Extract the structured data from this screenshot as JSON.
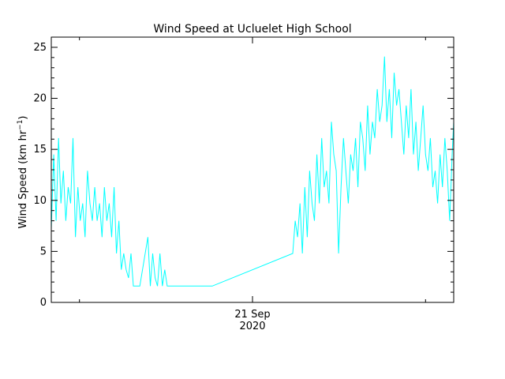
{
  "chart_data": {
    "type": "line",
    "title": "Wind Speed at Ucluelet High School",
    "ylabel": {
      "main": "Wind Speed (km hr",
      "sup": "−1",
      "close": ")"
    },
    "xlabel": "",
    "x_tick_labels": [
      {
        "label": "21 Sep",
        "year": "2020",
        "x": 0.5
      }
    ],
    "x_axis": "time (fraction of plotted interval)",
    "xlim": [
      0,
      1
    ],
    "ylim": [
      0,
      26
    ],
    "y_ticks": [
      0,
      5,
      10,
      15,
      20,
      25
    ],
    "y_tick_labels": [
      "0",
      "5",
      "10",
      "15",
      "20",
      "25"
    ],
    "grid": false,
    "line_color": "#00ffff",
    "series": [
      {
        "name": "",
        "x": [
          0.0,
          0.006,
          0.012,
          0.018,
          0.024,
          0.03,
          0.036,
          0.042,
          0.048,
          0.054,
          0.06,
          0.066,
          0.072,
          0.078,
          0.084,
          0.09,
          0.096,
          0.102,
          0.108,
          0.114,
          0.12,
          0.126,
          0.132,
          0.138,
          0.144,
          0.15,
          0.156,
          0.162,
          0.168,
          0.174,
          0.18,
          0.186,
          0.192,
          0.198,
          0.204,
          0.212,
          0.22,
          0.24,
          0.246,
          0.252,
          0.258,
          0.264,
          0.27,
          0.276,
          0.282,
          0.288,
          0.3,
          0.4,
          0.6,
          0.606,
          0.612,
          0.618,
          0.624,
          0.63,
          0.636,
          0.642,
          0.648,
          0.654,
          0.66,
          0.666,
          0.672,
          0.678,
          0.684,
          0.69,
          0.696,
          0.702,
          0.708,
          0.714,
          0.72,
          0.726,
          0.732,
          0.738,
          0.744,
          0.75,
          0.756,
          0.762,
          0.768,
          0.774,
          0.78,
          0.786,
          0.792,
          0.798,
          0.804,
          0.81,
          0.816,
          0.822,
          0.828,
          0.834,
          0.84,
          0.846,
          0.852,
          0.858,
          0.864,
          0.87,
          0.876,
          0.882,
          0.888,
          0.894,
          0.9,
          0.906,
          0.912,
          0.918,
          0.924,
          0.93,
          0.936,
          0.942,
          0.948,
          0.954,
          0.96,
          0.966,
          0.972,
          0.978,
          0.984,
          0.99,
          0.996,
          1.0
        ],
        "y": [
          7.2,
          14.5,
          8.0,
          16.1,
          9.7,
          12.9,
          8.0,
          11.3,
          9.7,
          16.1,
          6.4,
          11.3,
          8.0,
          9.7,
          6.4,
          12.9,
          9.7,
          8.0,
          11.3,
          8.0,
          9.7,
          6.4,
          11.3,
          8.0,
          9.7,
          6.4,
          11.3,
          4.8,
          8.0,
          3.2,
          4.8,
          3.2,
          2.4,
          4.8,
          1.6,
          1.6,
          1.6,
          6.4,
          1.6,
          4.8,
          2.4,
          1.6,
          4.8,
          1.6,
          3.2,
          1.6,
          1.6,
          1.6,
          4.8,
          8.0,
          6.4,
          9.7,
          4.8,
          11.3,
          6.4,
          12.9,
          9.7,
          8.0,
          14.5,
          9.7,
          16.1,
          11.3,
          12.9,
          9.7,
          17.7,
          14.5,
          12.9,
          4.8,
          11.3,
          16.1,
          12.9,
          9.7,
          14.5,
          12.9,
          16.1,
          11.3,
          17.7,
          16.1,
          12.9,
          19.3,
          14.5,
          17.7,
          16.1,
          20.9,
          17.7,
          19.3,
          24.1,
          17.7,
          20.9,
          16.1,
          22.5,
          19.3,
          20.9,
          17.7,
          14.5,
          19.3,
          16.1,
          20.9,
          14.5,
          17.7,
          12.9,
          16.1,
          19.3,
          14.5,
          12.9,
          16.1,
          11.3,
          12.9,
          9.7,
          14.5,
          11.3,
          16.1,
          12.9,
          8.0,
          14.5,
          17.7
        ]
      }
    ]
  }
}
